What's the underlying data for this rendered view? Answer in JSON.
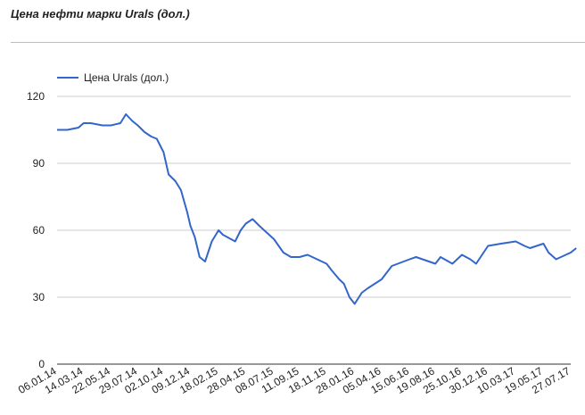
{
  "chart_data": {
    "type": "line",
    "title": "Цена нефти марки Urals (дол.)",
    "xlabel": "",
    "ylabel": "",
    "ylim": [
      0,
      120
    ],
    "y_ticks": [
      0,
      30,
      60,
      90,
      120
    ],
    "grid": true,
    "legend_position": "top-left",
    "color": "#3366cc",
    "x_tick_labels": [
      "06.01.14",
      "14.03.14",
      "22.05.14",
      "29.07.14",
      "02.10.14",
      "09.12.14",
      "18.02.15",
      "28.04.15",
      "08.07.15",
      "11.09.15",
      "18.11.15",
      "28.01.16",
      "05.04.16",
      "15.06.16",
      "19.08.16",
      "25.10.16",
      "30.12.16",
      "10.03.17",
      "19.05.17",
      "27.07.17"
    ],
    "series": [
      {
        "name": "Цена Urals (дол.)",
        "x": [
          "06.01.14",
          "01.02.14",
          "01.03.14",
          "14.03.14",
          "01.04.14",
          "01.05.14",
          "22.05.14",
          "15.06.14",
          "29.06.14",
          "15.07.14",
          "29.07.14",
          "15.08.14",
          "01.09.14",
          "15.09.14",
          "02.10.14",
          "15.10.14",
          "01.11.14",
          "15.11.14",
          "01.12.14",
          "09.12.14",
          "20.12.14",
          "01.01.15",
          "15.01.15",
          "01.02.15",
          "18.02.15",
          "01.03.15",
          "01.04.15",
          "15.04.15",
          "28.04.15",
          "15.05.15",
          "01.06.15",
          "08.07.15",
          "01.08.15",
          "20.08.15",
          "11.09.15",
          "01.10.15",
          "18.11.15",
          "01.12.15",
          "20.12.15",
          "01.01.16",
          "15.01.16",
          "28.01.16",
          "15.02.16",
          "01.03.16",
          "05.04.16",
          "01.05.16",
          "15.06.16",
          "01.07.16",
          "19.08.16",
          "01.09.16",
          "01.10.16",
          "25.10.16",
          "15.11.16",
          "30.11.16",
          "30.12.16",
          "01.02.17",
          "10.03.17",
          "01.04.17",
          "15.04.17",
          "19.05.17",
          "01.06.17",
          "20.06.17",
          "27.07.17",
          "10.08.17"
        ],
        "y": [
          105,
          105,
          106,
          108,
          108,
          107,
          107,
          108,
          112,
          109,
          107,
          104,
          102,
          101,
          95,
          85,
          82,
          78,
          68,
          62,
          57,
          48,
          46,
          55,
          60,
          58,
          55,
          60,
          63,
          65,
          62,
          56,
          50,
          48,
          48,
          49,
          45,
          42,
          38,
          36,
          30,
          27,
          32,
          34,
          38,
          44,
          47,
          48,
          45,
          48,
          45,
          49,
          47,
          45,
          53,
          54,
          55,
          53,
          52,
          54,
          50,
          47,
          50,
          52
        ]
      }
    ]
  }
}
